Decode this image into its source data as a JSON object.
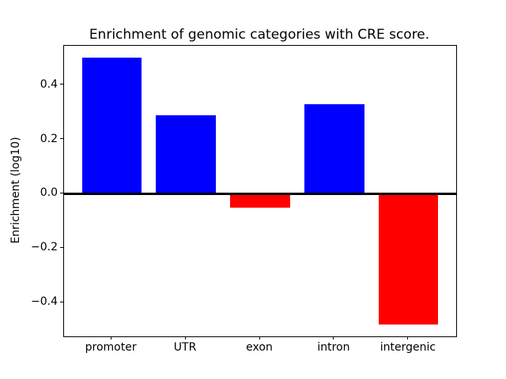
{
  "chart_data": {
    "type": "bar",
    "title": "Enrichment of genomic categories with CRE score.",
    "xlabel": "",
    "ylabel": "Enrichment (log10)",
    "categories": [
      "promoter",
      "UTR",
      "exon",
      "intron",
      "intergenic"
    ],
    "values": [
      0.5,
      0.29,
      -0.05,
      0.33,
      -0.48
    ],
    "colors": [
      "#0000ff",
      "#0000ff",
      "#ff0000",
      "#0000ff",
      "#ff0000"
    ],
    "positive_color": "#0000ff",
    "negative_color": "#ff0000",
    "ylim": [
      -0.525,
      0.545
    ],
    "xlim": [
      -0.64,
      4.64
    ],
    "bar_width": 0.8,
    "yticks": [
      0.4,
      0.2,
      0.0,
      -0.2,
      -0.4
    ],
    "ytick_labels": [
      "0.4",
      "0.2",
      "0.0",
      "−0.2",
      "−0.4"
    ],
    "zero_line": true,
    "grid": false,
    "legend": null,
    "axis_color": "#000000",
    "background_color": "#ffffff"
  }
}
